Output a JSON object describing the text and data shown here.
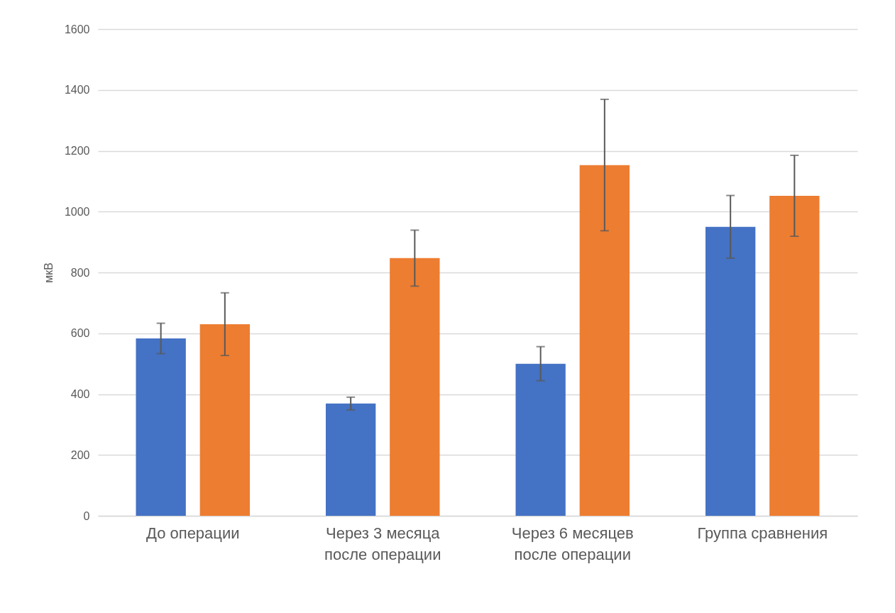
{
  "chart_data": {
    "type": "bar",
    "ylabel": "мкВ",
    "categories": [
      "До операции",
      "Через 3 месяца\nпосле операции",
      "Через 6 месяцев\nпосле операции",
      "Группа сравнения"
    ],
    "series": [
      {
        "color": "#4472c4",
        "values": [
          583,
          369,
          500,
          950
        ],
        "errors": [
          50,
          21,
          56,
          103
        ]
      },
      {
        "color": "#ed7d31",
        "values": [
          630,
          847,
          1153,
          1052
        ],
        "errors": [
          103,
          92,
          216,
          133
        ]
      }
    ],
    "ylim": [
      0,
      1600
    ],
    "yticks": [
      0,
      200,
      400,
      600,
      800,
      1000,
      1200,
      1400,
      1600
    ],
    "grid": "y",
    "legend": false
  }
}
